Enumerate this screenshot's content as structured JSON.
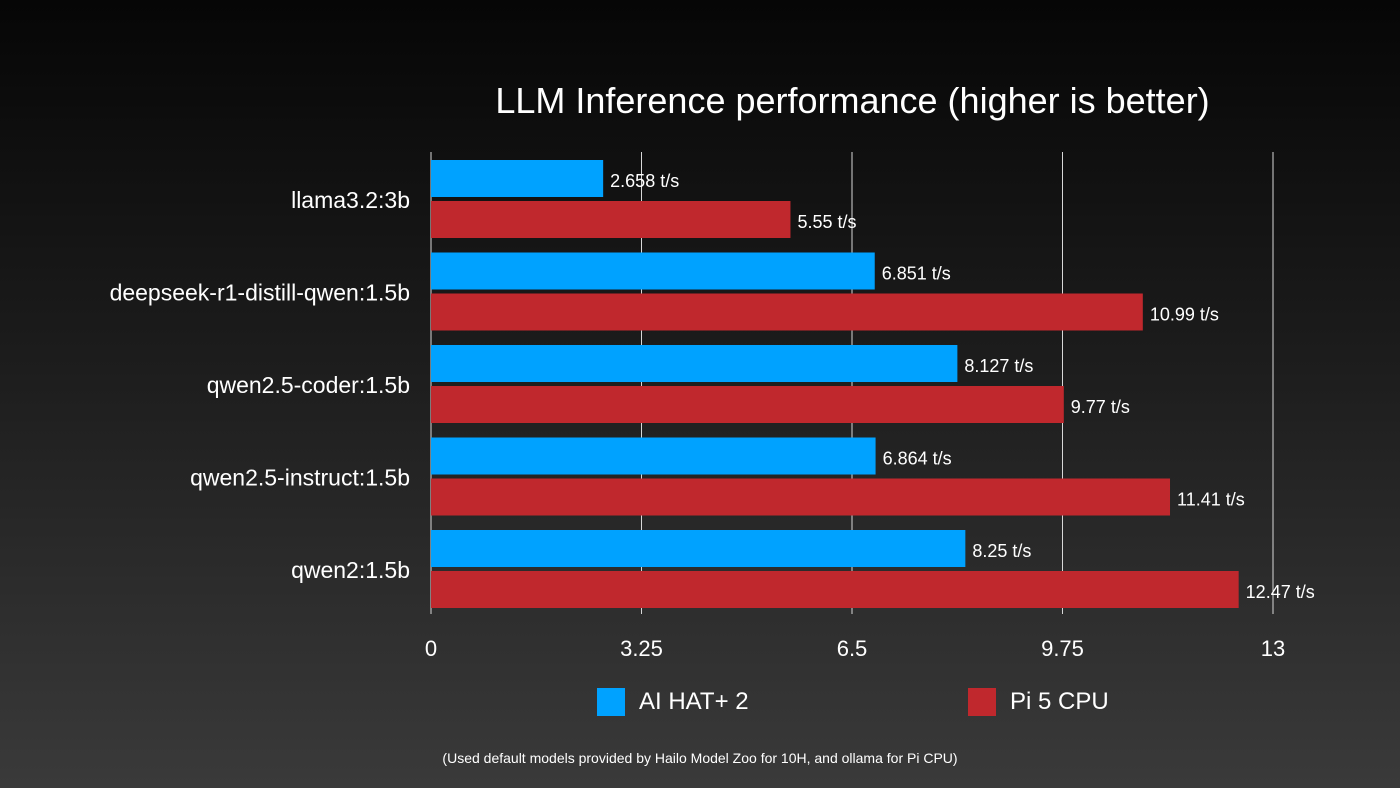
{
  "chart_data": {
    "type": "bar",
    "orientation": "horizontal",
    "title": "LLM Inference performance (higher is better)",
    "categories": [
      "llama3.2:3b",
      "deepseek-r1-distill-qwen:1.5b",
      "qwen2.5-coder:1.5b",
      "qwen2.5-instruct:1.5b",
      "qwen2:1.5b"
    ],
    "series": [
      {
        "name": "AI HAT+ 2",
        "color": "#00a2ff",
        "values": [
          2.658,
          6.851,
          8.127,
          6.864,
          8.25
        ],
        "labels": [
          "2.658 t/s",
          "6.851 t/s",
          "8.127 t/s",
          "6.864 t/s",
          "8.25 t/s"
        ]
      },
      {
        "name": "Pi 5 CPU",
        "color": "#c0282d",
        "values": [
          5.55,
          10.99,
          9.77,
          11.41,
          12.47
        ],
        "labels": [
          "5.55 t/s",
          "10.99 t/s",
          "9.77 t/s",
          "11.41 t/s",
          "12.47 t/s"
        ]
      }
    ],
    "xlim": [
      0,
      13
    ],
    "xticks": [
      "0",
      "3.25",
      "6.5",
      "9.75",
      "13"
    ],
    "grid": true,
    "legend": "bottom",
    "footnote": "(Used default models provided by Hailo Model Zoo for 10H, and ollama for Pi CPU)"
  }
}
